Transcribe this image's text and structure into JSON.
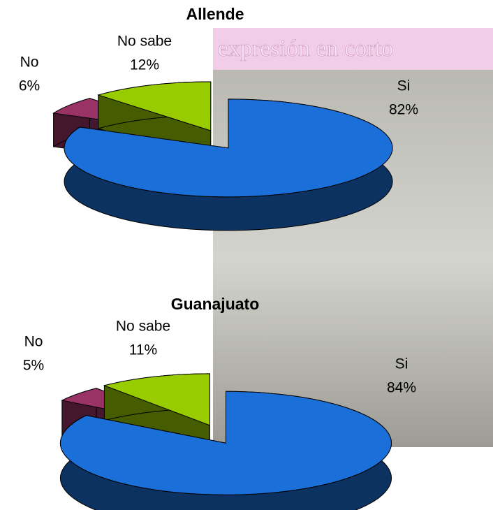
{
  "watermark": "expresión en corto",
  "chart_data": [
    {
      "type": "pie",
      "title": "Allende",
      "categories": [
        "Si",
        "No",
        "No sabe"
      ],
      "values": [
        82,
        6,
        12
      ],
      "value_labels": [
        "82%",
        "6%",
        "12%"
      ],
      "colors": [
        "#1a6fd8",
        "#993366",
        "#99cc00"
      ]
    },
    {
      "type": "pie",
      "title": "Guanajuato",
      "categories": [
        "Si",
        "No",
        "No sabe"
      ],
      "values": [
        84,
        5,
        11
      ],
      "value_labels": [
        "84%",
        "5%",
        "11%"
      ],
      "colors": [
        "#1a6fd8",
        "#993366",
        "#99cc00"
      ]
    }
  ]
}
